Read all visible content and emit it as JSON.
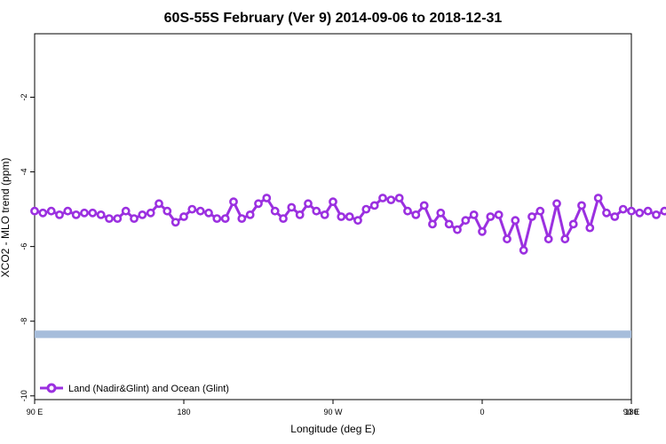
{
  "chart_data": {
    "type": "line",
    "title": "60S-55S February (Ver 9)   2014-09-06 to 2018-12-31",
    "xlabel": "Longitude (deg E)",
    "ylabel": "XCO2 - MLO trend (ppm)",
    "xlim": [
      90,
      450
    ],
    "ylim": [
      -10.1,
      -0.3
    ],
    "x_ticks": [
      {
        "value": 90,
        "label": "90 E"
      },
      {
        "value": 180,
        "label": "180"
      },
      {
        "value": 270,
        "label": "90 W"
      },
      {
        "value": 360,
        "label": "0"
      },
      {
        "value": 450,
        "label": "90 E"
      },
      {
        "value": 540,
        "label": "180"
      }
    ],
    "y_ticks": [
      {
        "value": -2,
        "label": "-2"
      },
      {
        "value": -4,
        "label": "-4"
      },
      {
        "value": -6,
        "label": "-6"
      },
      {
        "value": -8,
        "label": "-8"
      },
      {
        "value": -10,
        "label": "-10"
      }
    ],
    "x_start": 90,
    "x_step": 5,
    "series": [
      {
        "name": "Land (Nadir&Glint) and Ocean (Glint)",
        "color": "#9b30e0",
        "values": [
          -5.05,
          -5.1,
          -5.05,
          -5.15,
          -5.05,
          -5.15,
          -5.1,
          -5.1,
          -5.15,
          -5.25,
          -5.25,
          -5.05,
          -5.25,
          -5.15,
          -5.1,
          -4.85,
          -5.05,
          -5.35,
          -5.2,
          -5.0,
          -5.05,
          -5.1,
          -5.25,
          -5.25,
          -4.8,
          -5.25,
          -5.15,
          -4.85,
          -4.7,
          -5.05,
          -5.25,
          -4.95,
          -5.15,
          -4.85,
          -5.05,
          -5.15,
          -4.8,
          -5.2,
          -5.2,
          -5.3,
          -5.0,
          -4.9,
          -4.7,
          -4.75,
          -4.7,
          -5.05,
          -5.15,
          -4.9,
          -5.4,
          -5.1,
          -5.4,
          -5.55,
          -5.3,
          -5.15,
          -5.6,
          -5.2,
          -5.15,
          -5.8,
          -5.3,
          -6.1,
          -5.2,
          -5.05,
          -5.8,
          -4.85,
          -5.8,
          -5.4,
          -4.9,
          -5.5,
          -4.7,
          -5.1,
          -5.2,
          -5.0,
          -5.05,
          -5.1,
          -5.05,
          -5.15,
          -5.05,
          -5.15,
          -5.1,
          -5.1,
          -5.15,
          -5.25,
          -5.25,
          -5.05,
          -5.25,
          -5.15,
          -5.1,
          -4.85,
          -5.05,
          -5.35
        ]
      }
    ],
    "band": {
      "y_min": -8.45,
      "y_max": -8.25,
      "color": "#a6bddb"
    },
    "grid": false,
    "legend_position": "bottom-left"
  }
}
